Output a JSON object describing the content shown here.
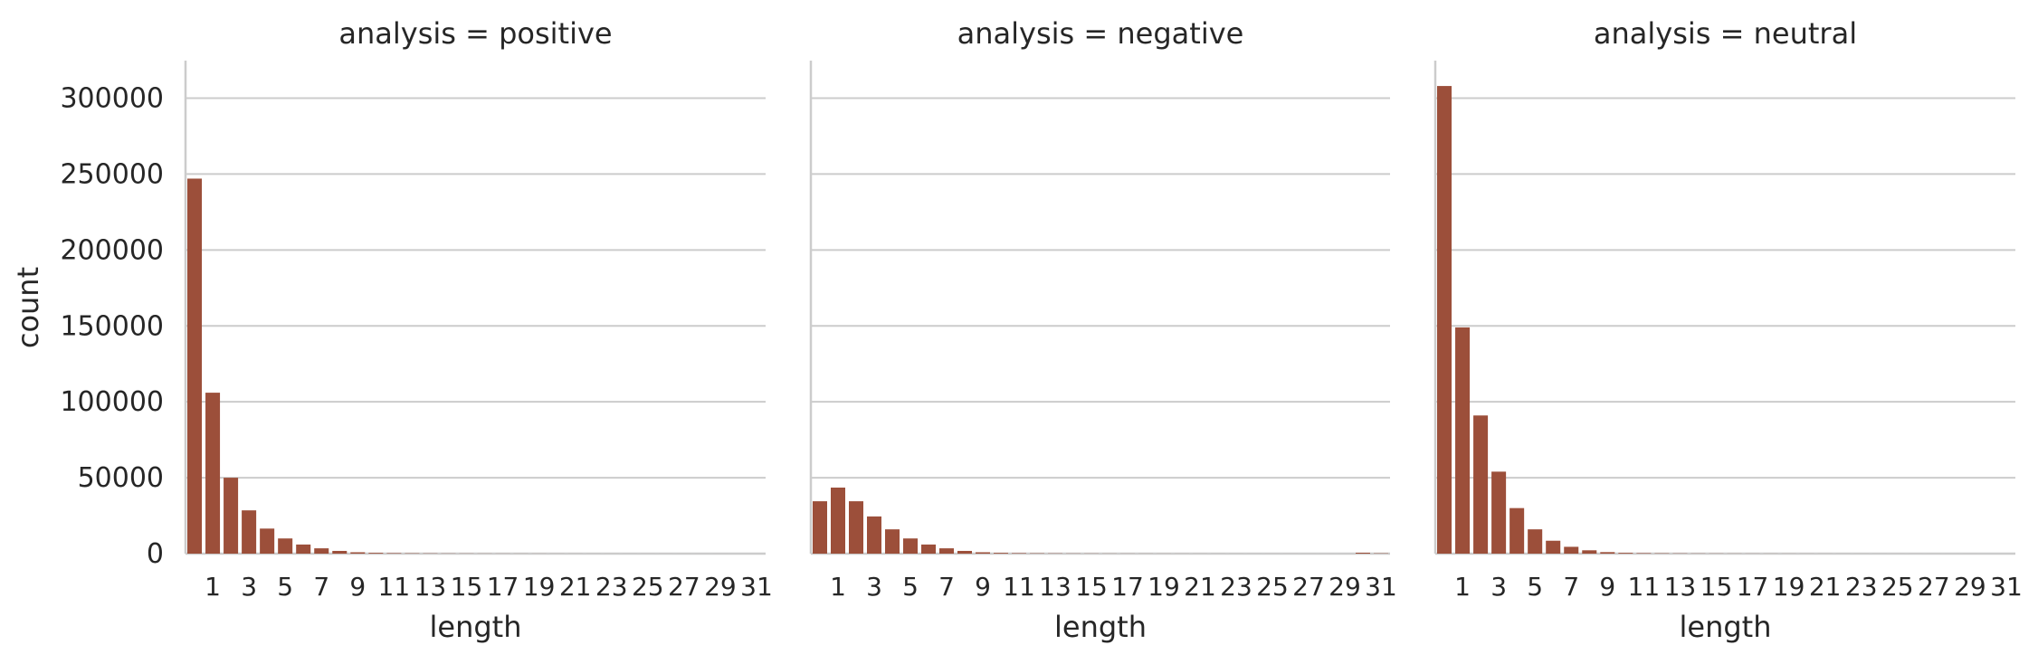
{
  "colors": {
    "bar": "#9c4f3a",
    "grid": "#cccccc",
    "axis": "#cccccc",
    "text": "#262626"
  },
  "chart_data": {
    "type": "bar",
    "x_categories": [
      0,
      1,
      2,
      3,
      4,
      5,
      6,
      7,
      8,
      9,
      10,
      11,
      12,
      13,
      14,
      15,
      16,
      17,
      18,
      19,
      20,
      21,
      22,
      23,
      24,
      25,
      26,
      27,
      28,
      29,
      30,
      31
    ],
    "x_tick_labels": [
      "1",
      "3",
      "5",
      "7",
      "9",
      "11",
      "13",
      "15",
      "17",
      "19",
      "21",
      "23",
      "25",
      "27",
      "29",
      "31"
    ],
    "xlabel": "length",
    "ylabel": "count",
    "ylim": [
      0,
      325000
    ],
    "yticks": [
      0,
      50000,
      100000,
      150000,
      200000,
      250000,
      300000
    ],
    "ytick_labels": [
      "0",
      "50000",
      "100000",
      "150000",
      "200000",
      "250000",
      "300000"
    ],
    "grid": "horizontal",
    "facets": [
      {
        "title": "analysis = positive",
        "values": [
          247000,
          106000,
          50000,
          28500,
          16500,
          10000,
          6000,
          3500,
          1800,
          900,
          500,
          300,
          200,
          150,
          100,
          80,
          60,
          50,
          40,
          30,
          25,
          20,
          15,
          12,
          10,
          8,
          6,
          5,
          4,
          3,
          2,
          2
        ]
      },
      {
        "title": "analysis = negative",
        "values": [
          34500,
          43500,
          34500,
          24500,
          16000,
          10000,
          6000,
          3500,
          1800,
          900,
          500,
          300,
          200,
          150,
          100,
          80,
          60,
          50,
          40,
          30,
          25,
          20,
          15,
          12,
          10,
          8,
          6,
          5,
          4,
          3,
          600,
          200
        ]
      },
      {
        "title": "analysis = neutral",
        "values": [
          308000,
          149000,
          91000,
          54000,
          30000,
          16000,
          8500,
          4500,
          2200,
          1000,
          500,
          300,
          200,
          150,
          100,
          80,
          60,
          50,
          40,
          30,
          25,
          20,
          15,
          12,
          10,
          8,
          6,
          5,
          4,
          3,
          2,
          2
        ]
      }
    ]
  }
}
